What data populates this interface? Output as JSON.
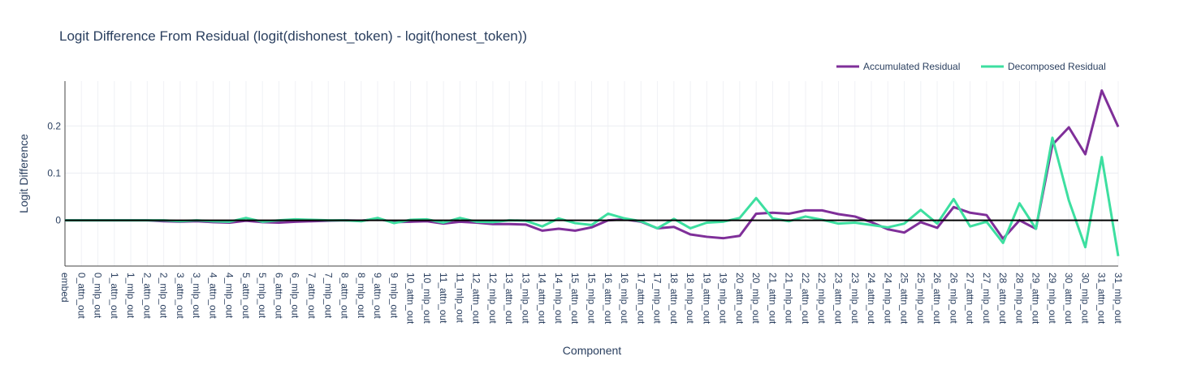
{
  "chart_data": {
    "type": "line",
    "title": "Logit Difference From Residual (logit(dishonest_token) - logit(honest_token))",
    "xlabel": "Component",
    "ylabel": "Logit Difference",
    "ylim": [
      -0.097,
      0.295
    ],
    "yticks": [
      0,
      0.1,
      0.2
    ],
    "ytick_labels": [
      "0",
      "0.1",
      "0.2"
    ],
    "grid": true,
    "zero_line": true,
    "legend_position": "top-right",
    "categories": [
      "embed",
      "0_attn_out",
      "0_mlp_out",
      "1_attn_out",
      "1_mlp_out",
      "2_attn_out",
      "2_mlp_out",
      "3_attn_out",
      "3_mlp_out",
      "4_attn_out",
      "4_mlp_out",
      "5_attn_out",
      "5_mlp_out",
      "6_attn_out",
      "6_mlp_out",
      "7_attn_out",
      "7_mlp_out",
      "8_attn_out",
      "8_mlp_out",
      "9_attn_out",
      "9_mlp_out",
      "10_attn_out",
      "10_mlp_out",
      "11_attn_out",
      "11_mlp_out",
      "12_attn_out",
      "12_mlp_out",
      "13_attn_out",
      "13_mlp_out",
      "14_attn_out",
      "14_mlp_out",
      "15_attn_out",
      "15_mlp_out",
      "16_attn_out",
      "16_mlp_out",
      "17_attn_out",
      "17_mlp_out",
      "18_attn_out",
      "18_mlp_out",
      "19_attn_out",
      "19_mlp_out",
      "20_attn_out",
      "20_mlp_out",
      "21_attn_out",
      "21_mlp_out",
      "22_attn_out",
      "22_mlp_out",
      "23_attn_out",
      "23_mlp_out",
      "24_attn_out",
      "24_mlp_out",
      "25_attn_out",
      "25_mlp_out",
      "26_attn_out",
      "26_mlp_out",
      "27_attn_out",
      "27_mlp_out",
      "28_attn_out",
      "28_mlp_out",
      "29_attn_out",
      "29_mlp_out",
      "30_attn_out",
      "30_mlp_out",
      "31_attn_out",
      "31_mlp_out"
    ],
    "series": [
      {
        "name": "Accumulated Residual",
        "color": "#7f2f99",
        "values": [
          0,
          0,
          0,
          0,
          0,
          0,
          -0.002,
          -0.003,
          -0.002,
          -0.004,
          -0.005,
          -0.001,
          -0.004,
          -0.005,
          -0.003,
          -0.002,
          -0.001,
          0,
          -0.001,
          0.003,
          -0.004,
          -0.003,
          -0.002,
          -0.007,
          -0.003,
          -0.005,
          -0.008,
          -0.008,
          -0.009,
          -0.022,
          -0.018,
          -0.022,
          -0.015,
          0,
          0.002,
          -0.003,
          -0.017,
          -0.014,
          -0.03,
          -0.035,
          -0.038,
          -0.033,
          0.014,
          0.016,
          0.014,
          0.021,
          0.021,
          0.013,
          0.008,
          -0.004,
          -0.019,
          -0.026,
          -0.004,
          -0.016,
          0.028,
          0.016,
          0.011,
          -0.039,
          0,
          -0.018,
          0.16,
          0.197,
          0.14,
          0.275,
          0.198
        ]
      },
      {
        "name": "Decomposed Residual",
        "color": "#3ddfa0",
        "values": [
          0,
          0,
          0,
          0,
          0,
          0,
          0,
          -0.002,
          0,
          -0.002,
          -0.003,
          0.005,
          -0.003,
          0,
          0.002,
          0.001,
          0,
          0,
          -0.002,
          0.005,
          -0.006,
          0.001,
          0.002,
          -0.005,
          0.005,
          -0.003,
          -0.004,
          0,
          -0.001,
          -0.013,
          0.004,
          -0.006,
          -0.01,
          0.014,
          0.004,
          -0.002,
          -0.017,
          0.003,
          -0.017,
          -0.005,
          -0.003,
          0.005,
          0.047,
          0.004,
          -0.002,
          0.008,
          0.001,
          -0.007,
          -0.005,
          -0.01,
          -0.015,
          -0.007,
          0.022,
          -0.007,
          0.045,
          -0.013,
          -0.003,
          -0.048,
          0.036,
          -0.018,
          0.175,
          0.042,
          -0.057,
          0.134,
          -0.076
        ]
      }
    ]
  }
}
